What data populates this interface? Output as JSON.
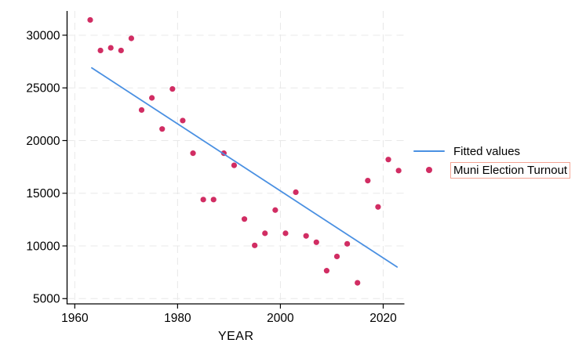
{
  "figure": {
    "background": "#ffffff"
  },
  "colors": {
    "scatter": "#d12d63",
    "fitted_line": "#4a90e2",
    "grid": "#e8e8e8",
    "axis": "#000000",
    "legend_box_border": "#f4a493"
  },
  "legend": {
    "items": [
      {
        "label": "Fitted values",
        "swatch": "line",
        "color": "#4a90e2",
        "boxed": false
      },
      {
        "label": "Muni Election Turnout",
        "swatch": "dot",
        "color": "#d12d63",
        "boxed": true
      }
    ]
  },
  "chart_data": {
    "type": "scatter",
    "title": "",
    "xlabel": "YEAR",
    "ylabel": "",
    "grid": "dashed",
    "legend_position": "right-middle",
    "x_ticks": [
      1960,
      1980,
      2000,
      2020
    ],
    "y_ticks": [
      5000,
      10000,
      15000,
      20000,
      25000,
      30000
    ],
    "x_range": [
      1958.5,
      2024.2
    ],
    "y_range": [
      4500,
      32300
    ],
    "series": [
      {
        "name": "Muni Election Turnout",
        "kind": "scatter",
        "color": "#d12d63",
        "points": [
          [
            1963,
            31450
          ],
          [
            1965,
            28550
          ],
          [
            1967,
            28800
          ],
          [
            1969,
            28550
          ],
          [
            1971,
            29700
          ],
          [
            1973,
            22900
          ],
          [
            1975,
            24050
          ],
          [
            1977,
            21100
          ],
          [
            1979,
            24900
          ],
          [
            1981,
            21900
          ],
          [
            1983,
            18800
          ],
          [
            1985,
            14400
          ],
          [
            1987,
            14400
          ],
          [
            1989,
            18800
          ],
          [
            1991,
            17650
          ],
          [
            1993,
            12550
          ],
          [
            1995,
            10050
          ],
          [
            1997,
            11200
          ],
          [
            1999,
            13400
          ],
          [
            2001,
            11200
          ],
          [
            2003,
            15100
          ],
          [
            2005,
            10950
          ],
          [
            2007,
            10350
          ],
          [
            2009,
            7650
          ],
          [
            2011,
            9000
          ],
          [
            2013,
            10200
          ],
          [
            2015,
            6500
          ],
          [
            2017,
            16200
          ],
          [
            2019,
            13700
          ],
          [
            2021,
            18200
          ],
          [
            2023,
            17150
          ]
        ]
      },
      {
        "name": "Fitted values",
        "kind": "line",
        "color": "#4a90e2",
        "points": [
          [
            1963.3,
            26900
          ],
          [
            2022.7,
            8000
          ]
        ]
      }
    ]
  }
}
